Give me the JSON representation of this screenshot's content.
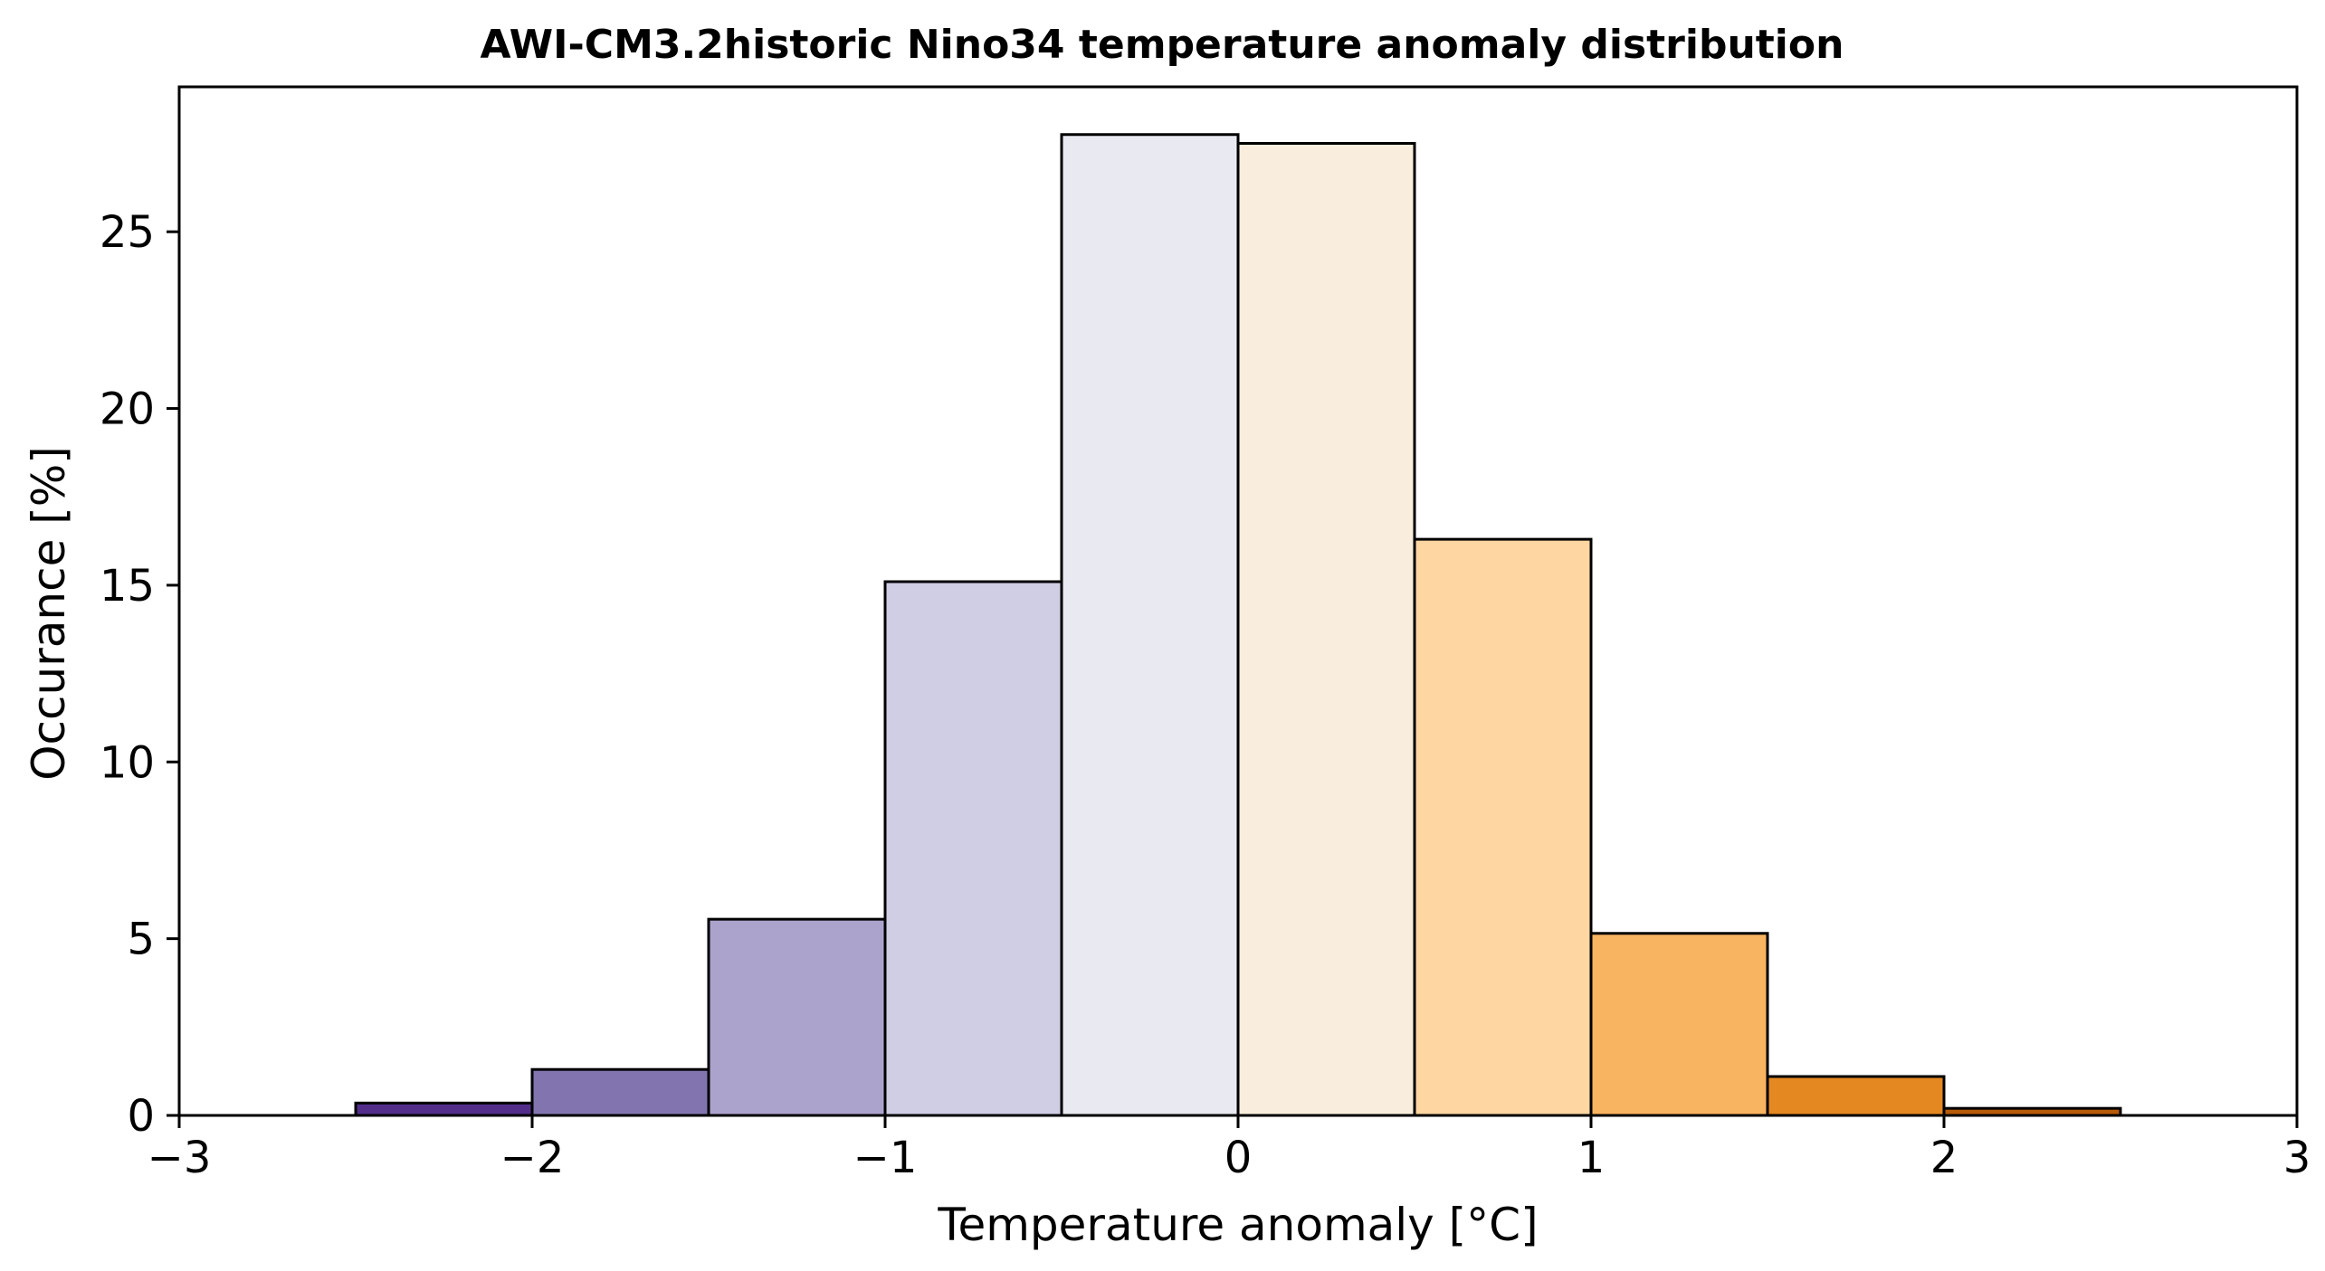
{
  "chart_data": {
    "type": "bar",
    "title": "AWI-CM3.2historic Nino34 temperature anomaly distribution",
    "xlabel": "Temperature anomaly [°C]",
    "ylabel": "Occurance [%]",
    "xlim": [
      -3,
      3
    ],
    "ylim": [
      0,
      29.1
    ],
    "xticks": [
      -3,
      -2,
      -1,
      0,
      1,
      2,
      3
    ],
    "xtick_labels": [
      "−3",
      "−2",
      "−1",
      "0",
      "1",
      "2",
      "3"
    ],
    "yticks": [
      0,
      5,
      10,
      15,
      20,
      25
    ],
    "ytick_labels": [
      "0",
      "5",
      "10",
      "15",
      "20",
      "25"
    ],
    "grid": false,
    "legend": "none",
    "bin_edges": [
      -2.5,
      -2.0,
      -1.5,
      -1.0,
      -0.5,
      0.0,
      0.5,
      1.0,
      1.5,
      2.0,
      2.5
    ],
    "values": [
      0.35,
      1.3,
      5.55,
      15.1,
      27.75,
      27.5,
      16.3,
      5.15,
      1.1,
      0.2
    ],
    "colors": [
      "#522e8a",
      "#8275af",
      "#aca3cd",
      "#d0cee4",
      "#e9e9f1",
      "#f9eedd",
      "#fdd6a2",
      "#f9b461",
      "#e48821",
      "#b75a0a"
    ]
  }
}
